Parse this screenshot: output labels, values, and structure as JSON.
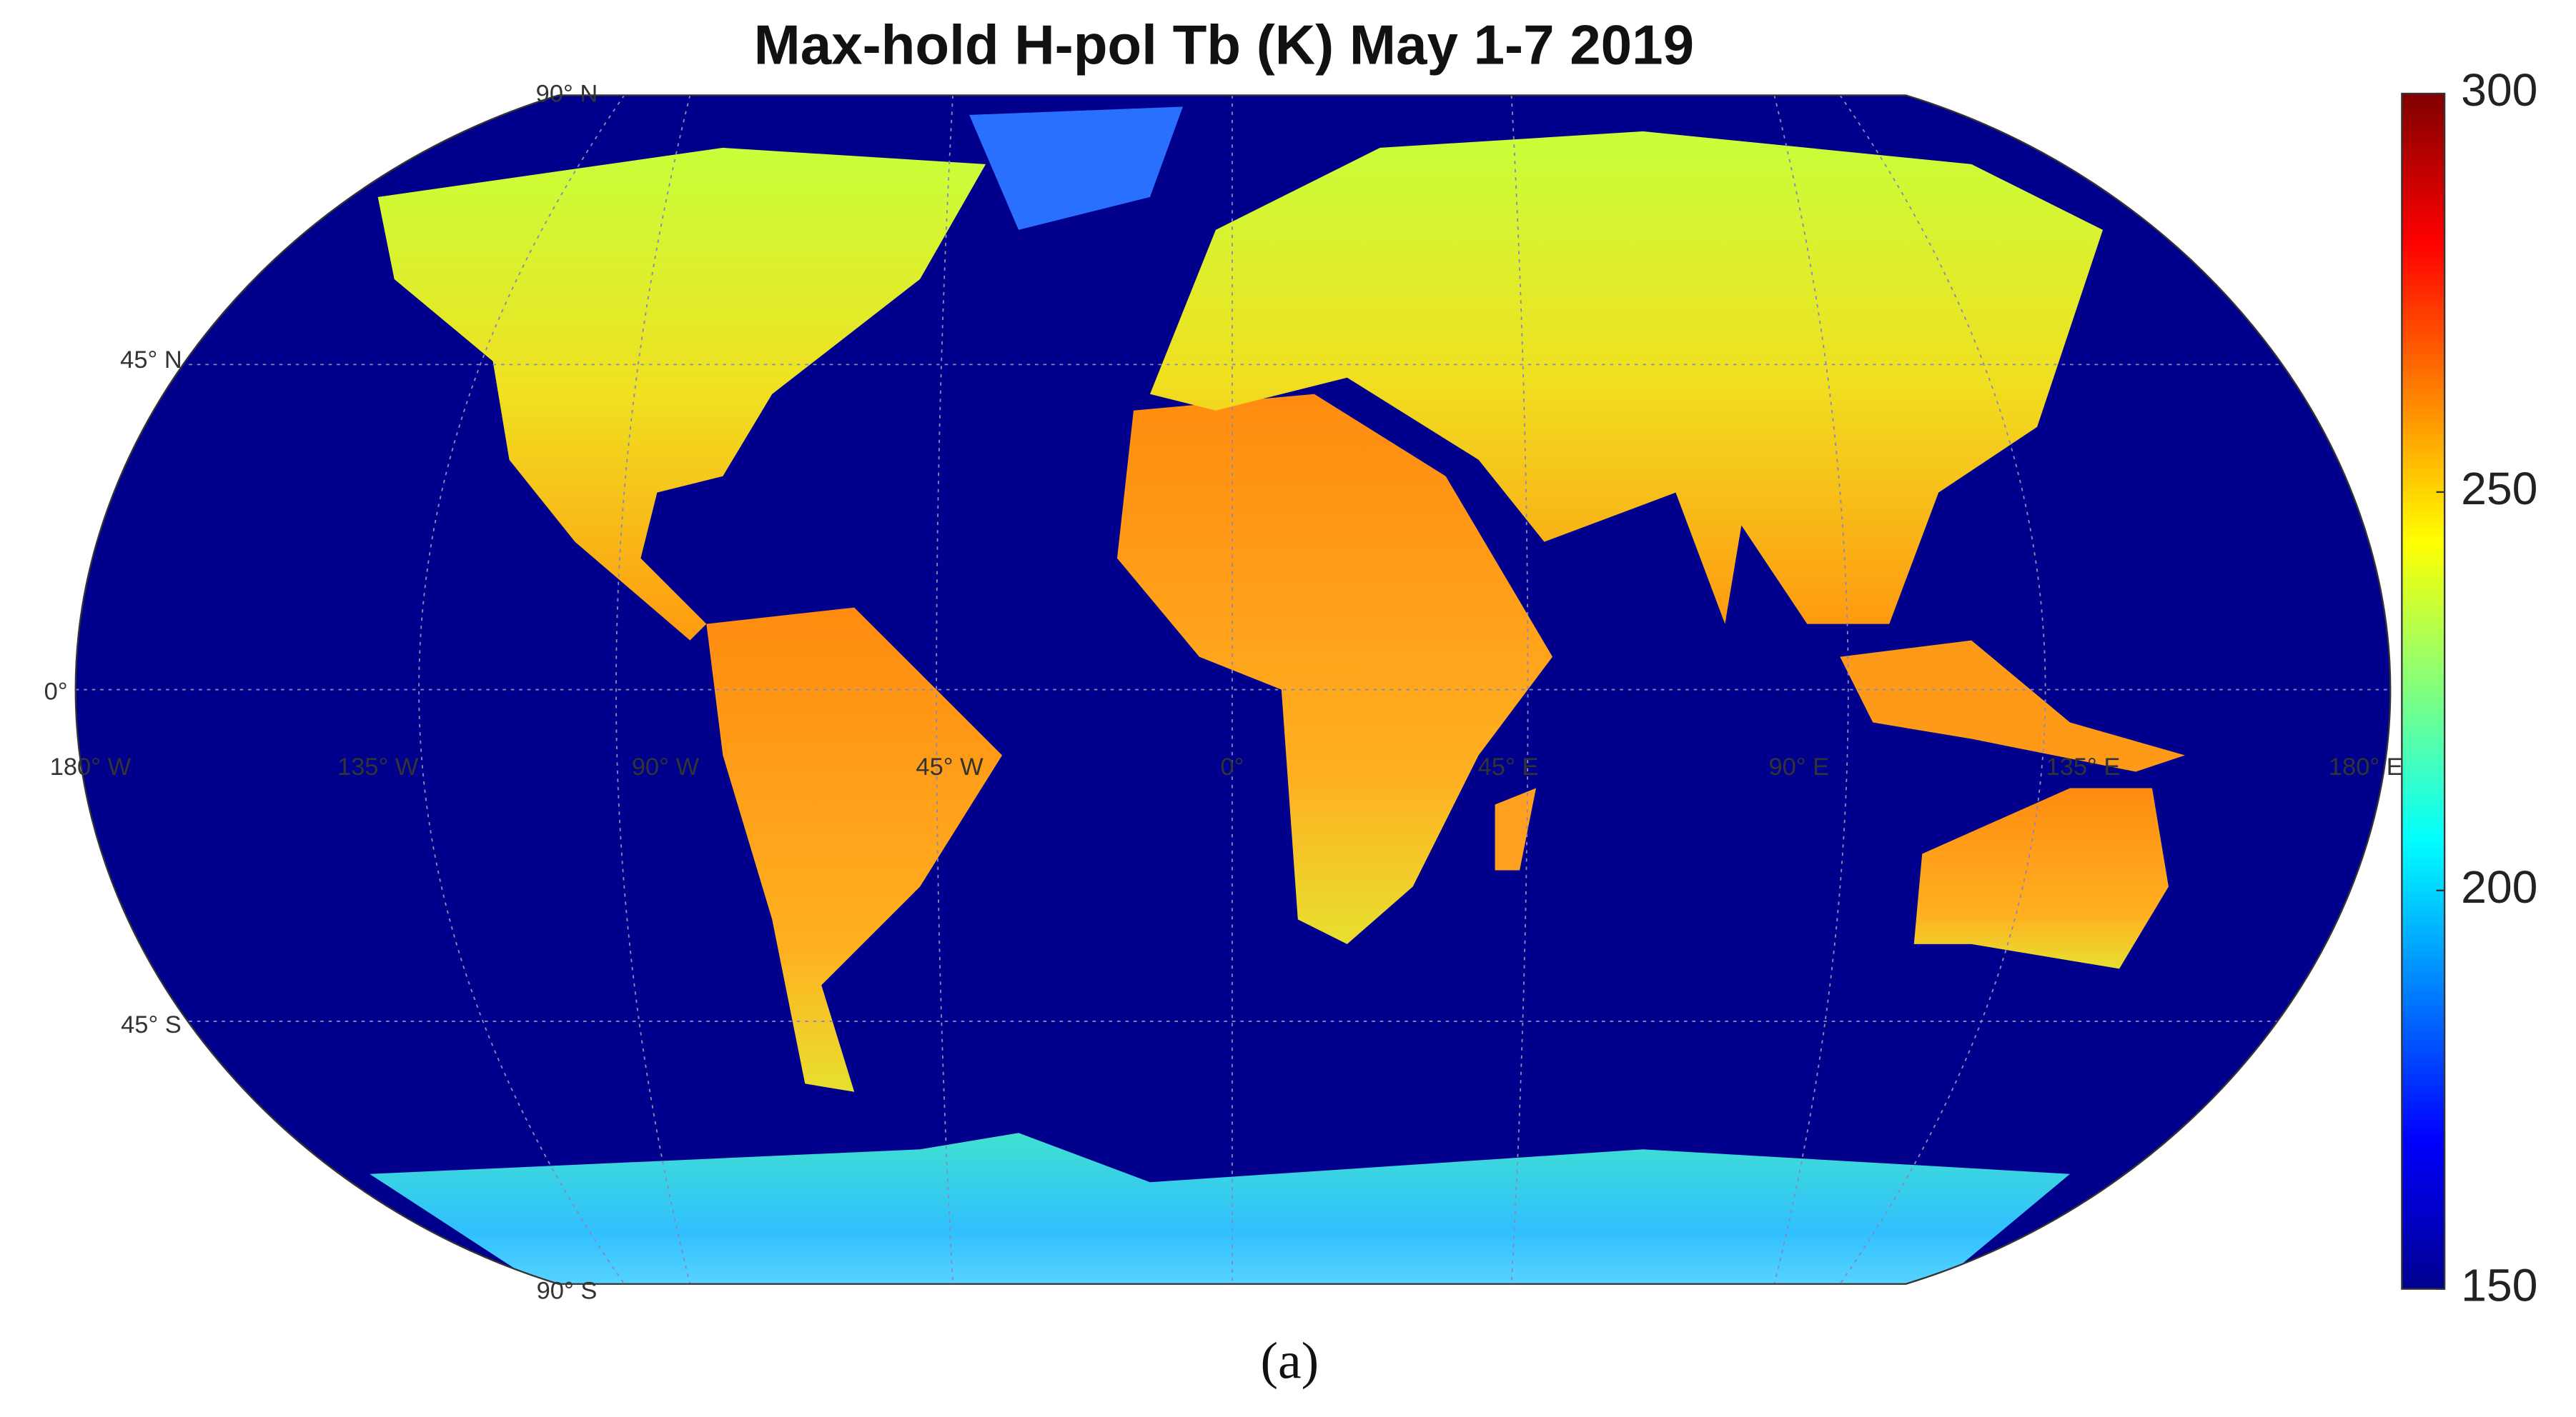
{
  "title": "Max-hold H-pol Tb (K) May 1-7 2019",
  "graticule": {
    "lat_labels": [
      "90° N",
      "45° N",
      "0°",
      "45° S",
      "90° S"
    ],
    "lon_labels": [
      "180° W",
      "135° W",
      "90° W",
      "45° W",
      "0°",
      "45° E",
      "90° E",
      "135° E",
      "180° E"
    ]
  },
  "colorbar": {
    "colormap": "jet",
    "lim": [
      150,
      300
    ],
    "ticks": [
      150,
      200,
      250,
      300
    ]
  },
  "caption": "(a)"
}
